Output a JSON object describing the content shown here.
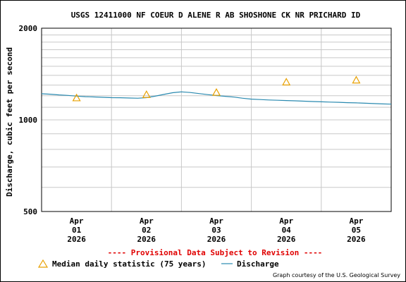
{
  "chart_data": {
    "type": "line",
    "title": "USGS 12411000 NF COEUR D ALENE R AB SHOSHONE CK NR PRICHARD ID",
    "ylabel": "Discharge, cubic feet per second",
    "xlabel": "",
    "y_scale": "log",
    "ylim": [
      500,
      2000
    ],
    "y_ticks": [
      "500",
      "1000",
      "2000"
    ],
    "xlim": [
      "2026-03-31T12:00",
      "2026-04-05T12:00"
    ],
    "x_ticks": [
      {
        "date": "2026-04-01",
        "line1": "Apr",
        "line2": "01",
        "line3": "2026"
      },
      {
        "date": "2026-04-02",
        "line1": "Apr",
        "line2": "02",
        "line3": "2026"
      },
      {
        "date": "2026-04-03",
        "line1": "Apr",
        "line2": "03",
        "line3": "2026"
      },
      {
        "date": "2026-04-04",
        "line1": "Apr",
        "line2": "04",
        "line3": "2026"
      },
      {
        "date": "2026-04-05",
        "line1": "Apr",
        "line2": "05",
        "line3": "2026"
      }
    ],
    "grid": true,
    "series": [
      {
        "name": "Discharge",
        "kind": "line",
        "color": "#2a8ab0",
        "points": [
          [
            "2026-03-31T12:00",
            1218
          ],
          [
            "2026-03-31T15:00",
            1214
          ],
          [
            "2026-03-31T18:00",
            1208
          ],
          [
            "2026-03-31T21:00",
            1203
          ],
          [
            "2026-04-01T00:00",
            1197
          ],
          [
            "2026-04-01T03:00",
            1192
          ],
          [
            "2026-04-01T06:00",
            1189
          ],
          [
            "2026-04-01T09:00",
            1186
          ],
          [
            "2026-04-01T12:00",
            1183
          ],
          [
            "2026-04-01T15:00",
            1182
          ],
          [
            "2026-04-01T18:00",
            1180
          ],
          [
            "2026-04-01T21:00",
            1178
          ],
          [
            "2026-04-02T00:00",
            1183
          ],
          [
            "2026-04-02T03:00",
            1196
          ],
          [
            "2026-04-02T06:00",
            1212
          ],
          [
            "2026-04-02T09:00",
            1228
          ],
          [
            "2026-04-02T12:00",
            1236
          ],
          [
            "2026-04-02T15:00",
            1230
          ],
          [
            "2026-04-02T18:00",
            1220
          ],
          [
            "2026-04-02T21:00",
            1210
          ],
          [
            "2026-04-03T00:00",
            1202
          ],
          [
            "2026-04-03T03:00",
            1195
          ],
          [
            "2026-04-03T06:00",
            1188
          ],
          [
            "2026-04-03T09:00",
            1178
          ],
          [
            "2026-04-03T12:00",
            1170
          ],
          [
            "2026-04-03T15:00",
            1166
          ],
          [
            "2026-04-03T18:00",
            1162
          ],
          [
            "2026-04-03T21:00",
            1160
          ],
          [
            "2026-04-04T00:00",
            1157
          ],
          [
            "2026-04-04T03:00",
            1155
          ],
          [
            "2026-04-04T06:00",
            1152
          ],
          [
            "2026-04-04T09:00",
            1149
          ],
          [
            "2026-04-04T12:00",
            1146
          ],
          [
            "2026-04-04T15:00",
            1144
          ],
          [
            "2026-04-04T18:00",
            1142
          ],
          [
            "2026-04-04T21:00",
            1139
          ],
          [
            "2026-04-05T00:00",
            1137
          ],
          [
            "2026-04-05T03:00",
            1134
          ],
          [
            "2026-04-05T06:00",
            1131
          ],
          [
            "2026-04-05T09:00",
            1128
          ],
          [
            "2026-04-05T12:00",
            1126
          ]
        ]
      },
      {
        "name": "Median daily statistic (75 years)",
        "kind": "marker",
        "marker": "triangle",
        "color": "#e8a000",
        "points": [
          [
            "2026-04-01T00:00",
            1180
          ],
          [
            "2026-04-02T00:00",
            1210
          ],
          [
            "2026-04-03T00:00",
            1230
          ],
          [
            "2026-04-04T00:00",
            1330
          ],
          [
            "2026-04-05T00:00",
            1350
          ]
        ]
      }
    ],
    "legend_position": "bottom"
  },
  "notice": "---- Provisional Data Subject to Revision ----",
  "notice_color": "#e00000",
  "legend": {
    "median_label": "Median daily statistic (75 years)",
    "discharge_label": "Discharge"
  },
  "credit": "Graph courtesy of the U.S. Geological Survey"
}
